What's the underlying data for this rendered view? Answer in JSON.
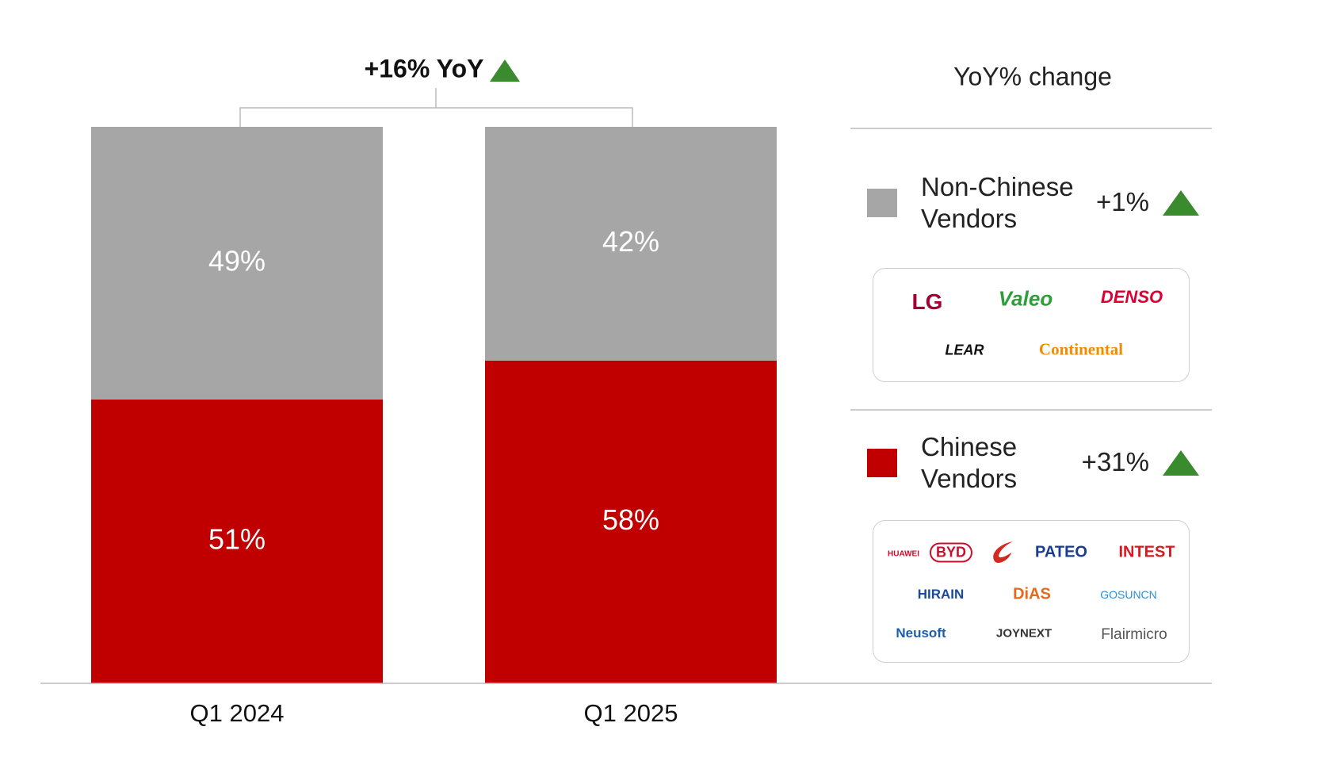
{
  "chart_data": {
    "type": "stacked_bar",
    "annotation": "+16% YoY",
    "legend_title": "YoY% change",
    "categories": [
      "Q1 2024",
      "Q1 2025"
    ],
    "ylim": [
      0,
      100
    ],
    "series": [
      {
        "name": "Chinese Vendors",
        "color": "#c00000",
        "values": [
          51,
          58
        ],
        "value_labels": [
          "51%",
          "58%"
        ],
        "yoy_change": "+31%",
        "vendors": [
          "HUAWEI",
          "BYD",
          "PATEO",
          "INTEST",
          "HIRAIN",
          "DiAS",
          "GOSUNCN",
          "Neusoft",
          "JOYNEXT",
          "Flairmicro"
        ]
      },
      {
        "name": "Non-Chinese Vendors",
        "color": "#a6a6a6",
        "values": [
          49,
          42
        ],
        "value_labels": [
          "49%",
          "42%"
        ],
        "yoy_change": "+1%",
        "vendors": [
          "LG",
          "Valeo",
          "DENSO",
          "LEAR",
          "Continental"
        ]
      }
    ],
    "trend_color": "#3a8a2e"
  }
}
